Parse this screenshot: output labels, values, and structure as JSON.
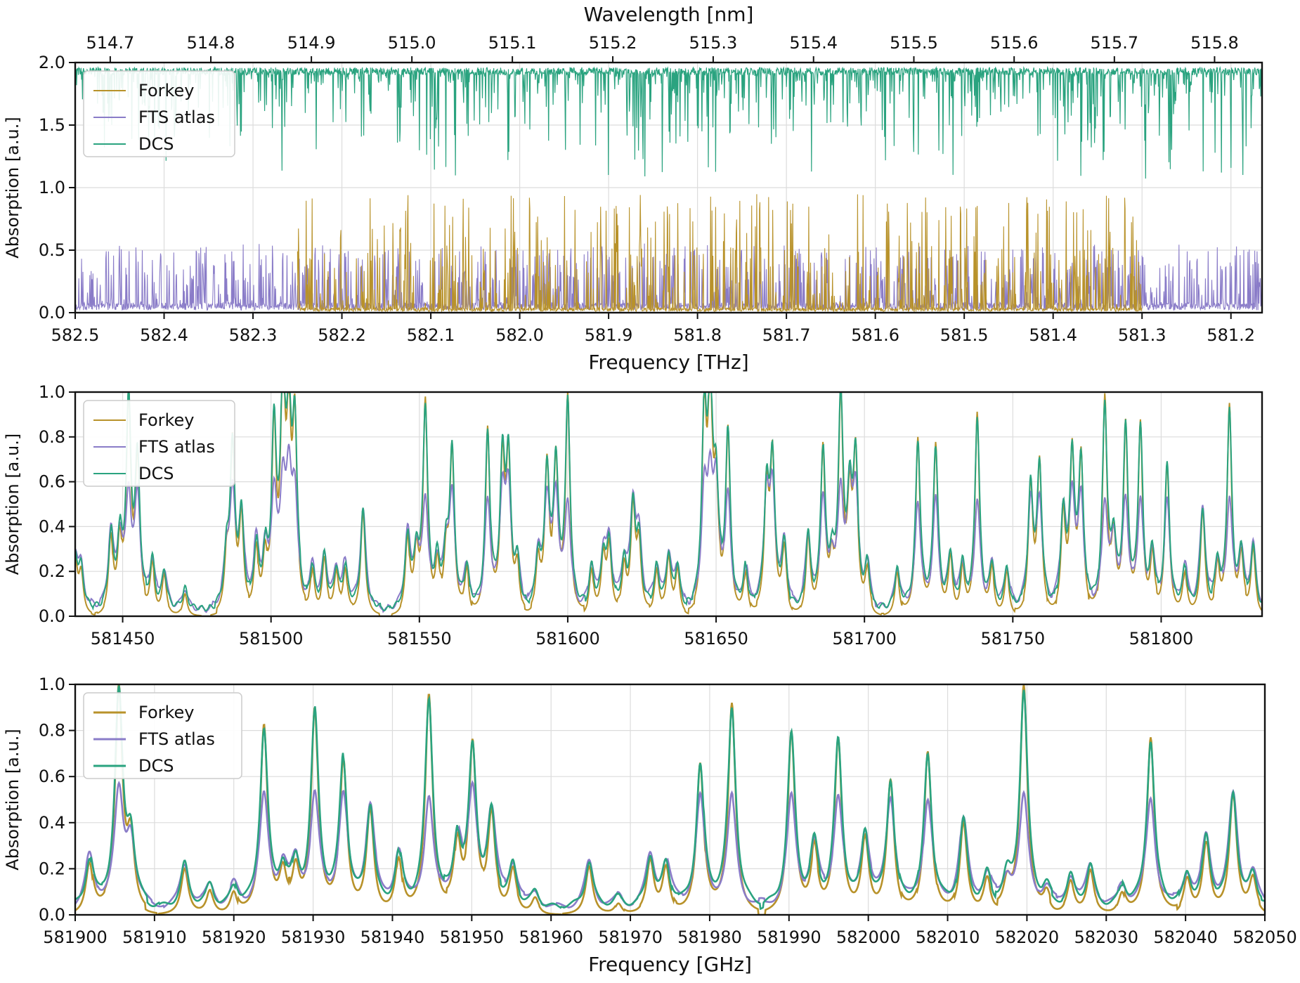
{
  "chart_data": [
    {
      "type": "line",
      "panel": "top",
      "xlabel": "Frequency [THz]",
      "ylabel": "Absorption [a.u.]",
      "top_xlabel": "Wavelength [nm]",
      "xlim": [
        582.5,
        581.165
      ],
      "ylim": [
        0.0,
        2.0
      ],
      "x_reversed": true,
      "xticks": [
        582.5,
        582.4,
        582.3,
        582.2,
        582.1,
        582.0,
        581.9,
        581.8,
        581.7,
        581.6,
        581.5,
        581.4,
        581.3,
        581.2
      ],
      "xticklabels": [
        "582.5",
        "582.4",
        "582.3",
        "582.2",
        "582.1",
        "582.0",
        "581.9",
        "581.8",
        "581.7",
        "581.6",
        "581.5",
        "581.4",
        "581.3",
        "581.2"
      ],
      "top_xticks_nm": [
        514.7,
        514.8,
        514.9,
        515.0,
        515.1,
        515.2,
        515.3,
        515.4,
        515.5,
        515.6,
        515.7,
        515.8
      ],
      "top_xticklabels": [
        "514.7",
        "514.8",
        "514.9",
        "515.0",
        "515.1",
        "515.2",
        "515.3",
        "515.4",
        "515.5",
        "515.6",
        "515.7",
        "515.8"
      ],
      "yticks": [
        0.0,
        0.5,
        1.0,
        1.5,
        2.0
      ],
      "yticklabels": [
        "0.0",
        "0.5",
        "1.0",
        "1.5",
        "2.0"
      ],
      "grid": true,
      "legend_position": "upper-left",
      "series": [
        {
          "name": "Forkey",
          "color": "#b8922a",
          "note_range": [
            582.25,
            581.3
          ],
          "baseline": 0.0,
          "typical_peak": 0.9
        },
        {
          "name": "FTS atlas",
          "color": "#8a7cc8",
          "baseline": 0.03,
          "typical_peak": 0.55
        },
        {
          "name": "DCS",
          "color": "#2aa37f",
          "baseline": 1.95,
          "typical_dip": 1.0
        }
      ]
    },
    {
      "type": "line",
      "panel": "middle",
      "xlabel": "",
      "ylabel": "Absorption [a.u.]",
      "xlim": [
        581434,
        581834
      ],
      "ylim": [
        0.0,
        1.0
      ],
      "xticks": [
        581450,
        581500,
        581550,
        581600,
        581650,
        581700,
        581750,
        581800
      ],
      "xticklabels": [
        "581450",
        "581500",
        "581550",
        "581600",
        "581650",
        "581700",
        "581750",
        "581800"
      ],
      "yticks": [
        0.0,
        0.2,
        0.4,
        0.6,
        0.8,
        1.0
      ],
      "yticklabels": [
        "0.0",
        "0.2",
        "0.4",
        "0.6",
        "0.8",
        "1.0"
      ],
      "grid": true,
      "legend_position": "upper-left",
      "series": [
        {
          "name": "Forkey",
          "color": "#b8922a"
        },
        {
          "name": "FTS atlas",
          "color": "#8a7cc8"
        },
        {
          "name": "DCS",
          "color": "#2aa37f"
        }
      ],
      "peaks": [
        [
          581434,
          0.25
        ],
        [
          581436,
          0.18
        ],
        [
          581446,
          0.35
        ],
        [
          581449,
          0.3
        ],
        [
          581452,
          0.95
        ],
        [
          581455,
          0.68
        ],
        [
          581460,
          0.22
        ],
        [
          581464,
          0.18
        ],
        [
          581471,
          0.1
        ],
        [
          581485,
          0.22
        ],
        [
          581487,
          0.75
        ],
        [
          581490,
          0.42
        ],
        [
          581495,
          0.3
        ],
        [
          581498,
          0.25
        ],
        [
          581501,
          0.82
        ],
        [
          581504,
          0.97
        ],
        [
          581506,
          0.75
        ],
        [
          581508,
          0.82
        ],
        [
          581514,
          0.2
        ],
        [
          581518,
          0.25
        ],
        [
          581522,
          0.18
        ],
        [
          581525,
          0.2
        ],
        [
          581531,
          0.47
        ],
        [
          581546,
          0.35
        ],
        [
          581549,
          0.25
        ],
        [
          581552,
          0.95
        ],
        [
          581556,
          0.2
        ],
        [
          581559,
          0.25
        ],
        [
          581561,
          0.73
        ],
        [
          581566,
          0.2
        ],
        [
          581573,
          0.83
        ],
        [
          581578,
          0.65
        ],
        [
          581580,
          0.68
        ],
        [
          581583,
          0.2
        ],
        [
          581590,
          0.25
        ],
        [
          581593,
          0.65
        ],
        [
          581596,
          0.66
        ],
        [
          581600,
          0.97
        ],
        [
          581608,
          0.2
        ],
        [
          581612,
          0.25
        ],
        [
          581614,
          0.3
        ],
        [
          581619,
          0.2
        ],
        [
          581622,
          0.47
        ],
        [
          581624,
          0.3
        ],
        [
          581630,
          0.2
        ],
        [
          581634,
          0.25
        ],
        [
          581637,
          0.2
        ],
        [
          581646,
          0.85
        ],
        [
          581648,
          0.94
        ],
        [
          581650,
          0.5
        ],
        [
          581654,
          0.83
        ],
        [
          581660,
          0.2
        ],
        [
          581667,
          0.55
        ],
        [
          581669,
          0.68
        ],
        [
          581673,
          0.3
        ],
        [
          581681,
          0.35
        ],
        [
          581686,
          0.75
        ],
        [
          581689,
          0.2
        ],
        [
          581692,
          0.97
        ],
        [
          581695,
          0.47
        ],
        [
          581697,
          0.68
        ],
        [
          581701,
          0.2
        ],
        [
          581711,
          0.2
        ],
        [
          581718,
          0.8
        ],
        [
          581724,
          0.77
        ],
        [
          581729,
          0.25
        ],
        [
          581733,
          0.2
        ],
        [
          581738,
          0.9
        ],
        [
          581743,
          0.2
        ],
        [
          581748,
          0.2
        ],
        [
          581756,
          0.57
        ],
        [
          581759,
          0.67
        ],
        [
          581767,
          0.45
        ],
        [
          581770,
          0.7
        ],
        [
          581773,
          0.7
        ],
        [
          581781,
          0.97
        ],
        [
          581784,
          0.3
        ],
        [
          581788,
          0.84
        ],
        [
          581793,
          0.84
        ],
        [
          581797,
          0.25
        ],
        [
          581802,
          0.68
        ],
        [
          581808,
          0.2
        ],
        [
          581814,
          0.48
        ],
        [
          581819,
          0.2
        ],
        [
          581823,
          0.93
        ],
        [
          581827,
          0.25
        ],
        [
          581831,
          0.3
        ]
      ]
    },
    {
      "type": "line",
      "panel": "bottom",
      "xlabel": "Frequency [GHz]",
      "ylabel": "Absorption [a.u.]",
      "xlim": [
        581900,
        582050
      ],
      "ylim": [
        0.0,
        1.0
      ],
      "xticks": [
        581900,
        581910,
        581920,
        581930,
        581940,
        581950,
        581960,
        581970,
        581980,
        581990,
        582000,
        582010,
        582020,
        582030,
        582040,
        582050
      ],
      "xticklabels": [
        "581900",
        "581910",
        "581920",
        "581930",
        "581940",
        "581950",
        "581960",
        "581970",
        "581980",
        "581990",
        "582000",
        "582010",
        "582020",
        "582030",
        "582040",
        "582050"
      ],
      "yticks": [
        0.0,
        0.2,
        0.4,
        0.6,
        0.8,
        1.0
      ],
      "yticklabels": [
        "0.0",
        "0.2",
        "0.4",
        "0.6",
        "0.8",
        "1.0"
      ],
      "grid": true,
      "legend_position": "upper-left",
      "series": [
        {
          "name": "Forkey",
          "color": "#b8922a"
        },
        {
          "name": "FTS atlas",
          "color": "#8a7cc8"
        },
        {
          "name": "DCS",
          "color": "#2aa37f"
        }
      ],
      "peaks": [
        [
          581901.8,
          0.23
        ],
        [
          581905.5,
          0.97
        ],
        [
          581907.0,
          0.3
        ],
        [
          581913.8,
          0.2
        ],
        [
          581917.0,
          0.1
        ],
        [
          581920.0,
          0.1
        ],
        [
          581923.8,
          0.82
        ],
        [
          581926.2,
          0.17
        ],
        [
          581927.8,
          0.18
        ],
        [
          581930.2,
          0.89
        ],
        [
          581933.8,
          0.68
        ],
        [
          581937.2,
          0.46
        ],
        [
          581940.8,
          0.25
        ],
        [
          581944.6,
          0.96
        ],
        [
          581948.2,
          0.3
        ],
        [
          581950.1,
          0.72
        ],
        [
          581952.5,
          0.42
        ],
        [
          581955.2,
          0.19
        ],
        [
          581958.0,
          0.07
        ],
        [
          581964.8,
          0.21
        ],
        [
          581968.5,
          0.05
        ],
        [
          581972.5,
          0.23
        ],
        [
          581974.5,
          0.2
        ],
        [
          581978.8,
          0.66
        ],
        [
          581982.8,
          0.92
        ],
        [
          581990.3,
          0.79
        ],
        [
          581993.2,
          0.27
        ],
        [
          581996.2,
          0.76
        ],
        [
          581999.6,
          0.33
        ],
        [
          582002.8,
          0.58
        ],
        [
          582007.5,
          0.71
        ],
        [
          582012.0,
          0.4
        ],
        [
          582015.0,
          0.15
        ],
        [
          582017.5,
          0.12
        ],
        [
          582019.6,
          0.99
        ],
        [
          582022.5,
          0.08
        ],
        [
          582025.5,
          0.14
        ],
        [
          582028.0,
          0.19
        ],
        [
          582032.0,
          0.1
        ],
        [
          582035.6,
          0.77
        ],
        [
          582040.2,
          0.15
        ],
        [
          582042.6,
          0.31
        ],
        [
          582046.0,
          0.52
        ],
        [
          582048.5,
          0.15
        ]
      ]
    }
  ]
}
